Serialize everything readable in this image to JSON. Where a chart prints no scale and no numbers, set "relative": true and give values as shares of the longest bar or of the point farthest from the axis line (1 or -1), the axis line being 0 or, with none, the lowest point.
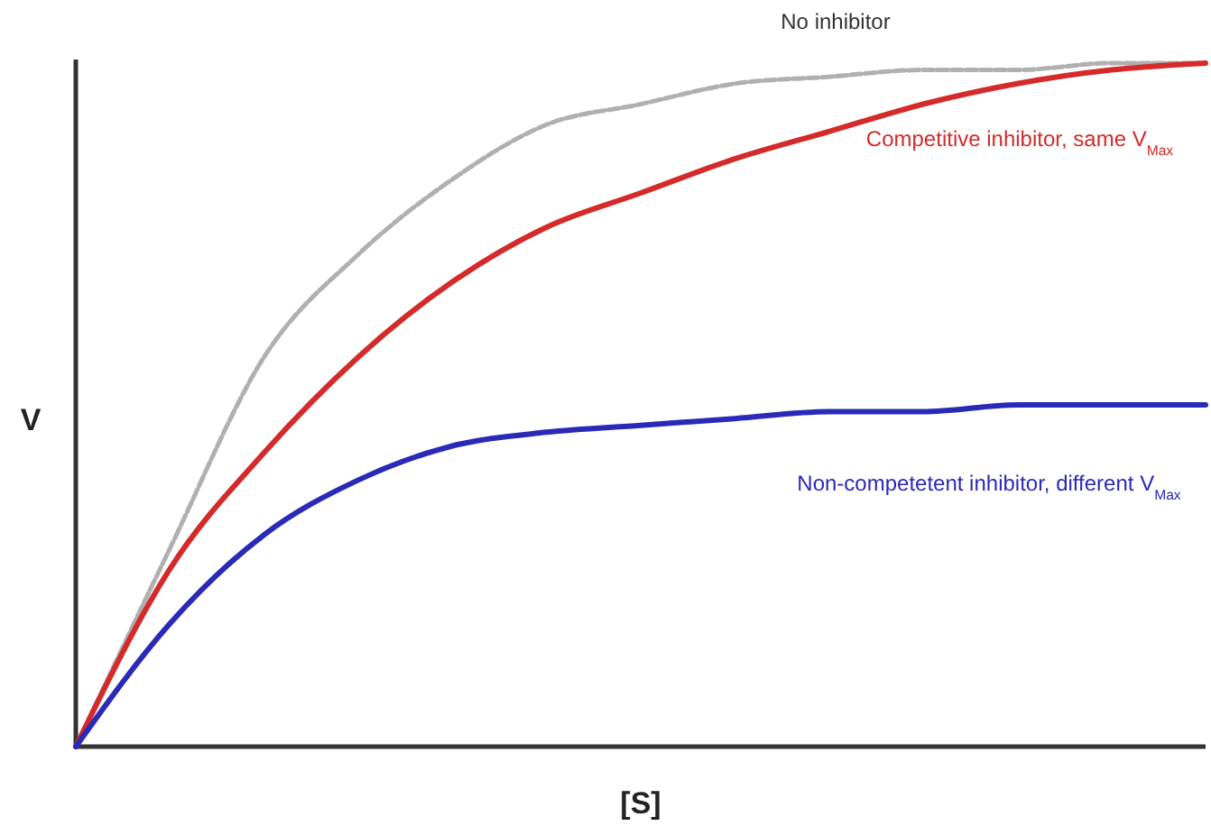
{
  "chart_data": {
    "type": "line",
    "relative": true,
    "xlabel": "[S]",
    "ylabel": "V",
    "categories": [
      null,
      null,
      null,
      null,
      null,
      null,
      null,
      null,
      null,
      null,
      null,
      null,
      null
    ],
    "series": [
      {
        "name": "No inhibitor",
        "color": "#b0b0b0",
        "line_style": "dashed",
        "values": [
          0,
          0.29,
          0.57,
          0.72,
          0.83,
          0.91,
          0.94,
          0.97,
          0.98,
          0.99,
          0.99,
          1.0,
          1.0
        ]
      },
      {
        "name": "Competitive inhibitor, same V$_{Max}$",
        "color": "#d42a2a",
        "values": [
          0,
          0.26,
          0.43,
          0.57,
          0.68,
          0.76,
          0.81,
          0.86,
          0.9,
          0.94,
          0.97,
          0.99,
          1.0
        ]
      },
      {
        "name": "Non-competetent inhibitor, different V$_{Max}$",
        "color": "#2a2ab8",
        "values": [
          0,
          0.18,
          0.31,
          0.39,
          0.44,
          0.46,
          0.47,
          0.48,
          0.49,
          0.49,
          0.5,
          0.5,
          0.5
        ]
      }
    ]
  }
}
